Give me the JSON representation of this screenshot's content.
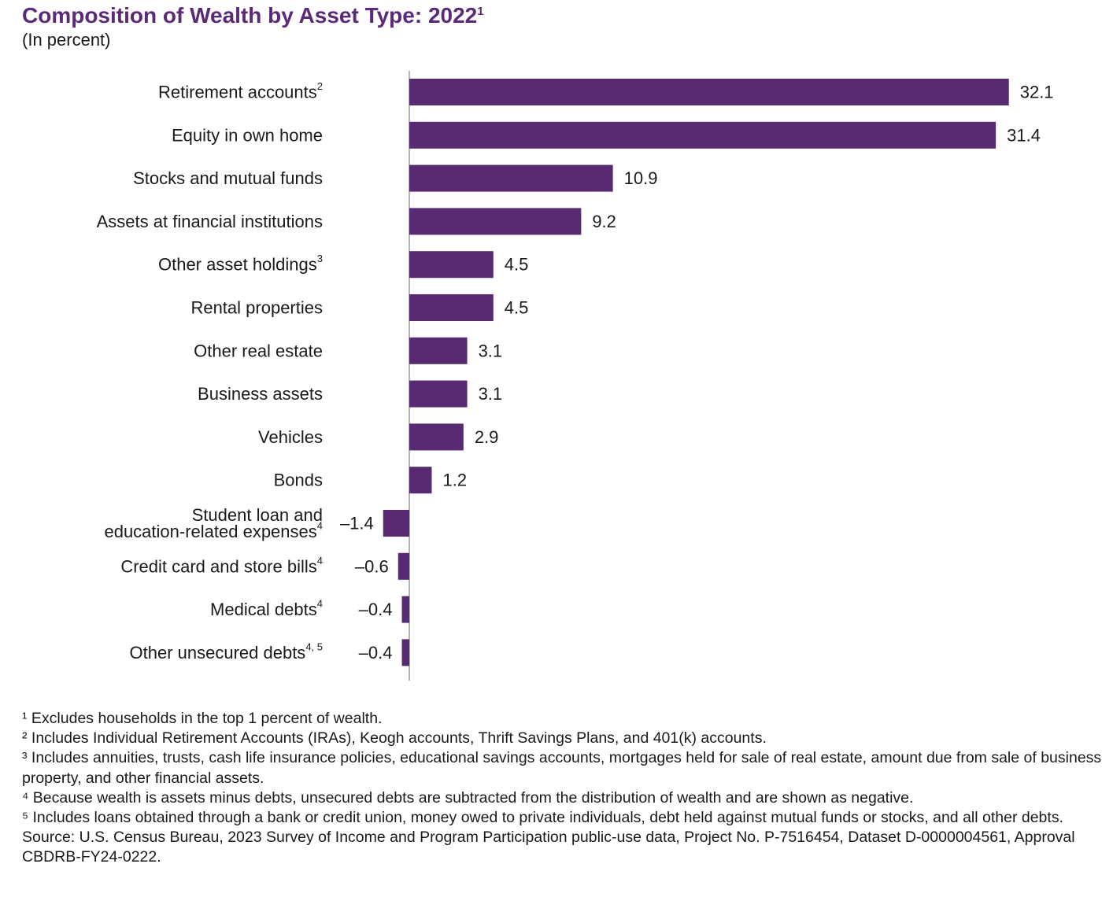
{
  "title": "Composition of Wealth by Asset Type: 2022",
  "title_mark": "1",
  "subtitle": "(In percent)",
  "chart_data": {
    "type": "bar",
    "orientation": "horizontal",
    "categories": [
      {
        "label": "Retirement accounts",
        "mark": "2"
      },
      {
        "label": "Equity in own home",
        "mark": ""
      },
      {
        "label": "Stocks and mutual funds",
        "mark": ""
      },
      {
        "label": "Assets at financial institutions",
        "mark": ""
      },
      {
        "label": "Other asset holdings",
        "mark": "3"
      },
      {
        "label": "Rental properties",
        "mark": ""
      },
      {
        "label": "Other real estate",
        "mark": ""
      },
      {
        "label": "Business assets",
        "mark": ""
      },
      {
        "label": "Vehicles",
        "mark": ""
      },
      {
        "label": "Bonds",
        "mark": ""
      },
      {
        "label": "Student loan and education-related expenses",
        "lines": [
          "Student loan and",
          "education-related expenses"
        ],
        "mark": "4"
      },
      {
        "label": "Credit card and store bills",
        "mark": "4"
      },
      {
        "label": "Medical debts",
        "mark": "4"
      },
      {
        "label": "Other unsecured debts",
        "mark": "4, 5"
      }
    ],
    "values": [
      32.1,
      31.4,
      10.9,
      9.2,
      4.5,
      4.5,
      3.1,
      3.1,
      2.9,
      1.2,
      -1.4,
      -0.6,
      -0.4,
      -0.4
    ],
    "value_labels": [
      "32.1",
      "31.4",
      "10.9",
      "9.2",
      "4.5",
      "4.5",
      "3.1",
      "3.1",
      "2.9",
      "1.2",
      "–1.4",
      "–0.6",
      "–0.4",
      "–0.4"
    ],
    "bar_color": "#582a72",
    "axis_color": "#9a9a9a",
    "xlim": [
      -1.4,
      32.1
    ]
  },
  "footnotes": [
    "¹ Excludes households in the top 1 percent of wealth.",
    "² Includes Individual Retirement Accounts (IRAs), Keogh accounts, Thrift Savings Plans, and 401(k) accounts.",
    "³ Includes annuities, trusts, cash life insurance policies, educational savings accounts, mortgages held for sale of real estate, amount due from sale of business property, and other financial assets.",
    "⁴ Because wealth is assets minus debts, unsecured debts are subtracted from the distribution of wealth and are shown as negative.",
    "⁵ Includes loans obtained through a bank or credit union, money owed to private individuals, debt held against mutual funds or stocks, and all other debts."
  ],
  "source": "Source: U.S. Census Bureau, 2023 Survey of Income and Program Participation public-use data, Project No. P-7516454, Dataset D-0000004561, Approval CBDRB-FY24-0222."
}
